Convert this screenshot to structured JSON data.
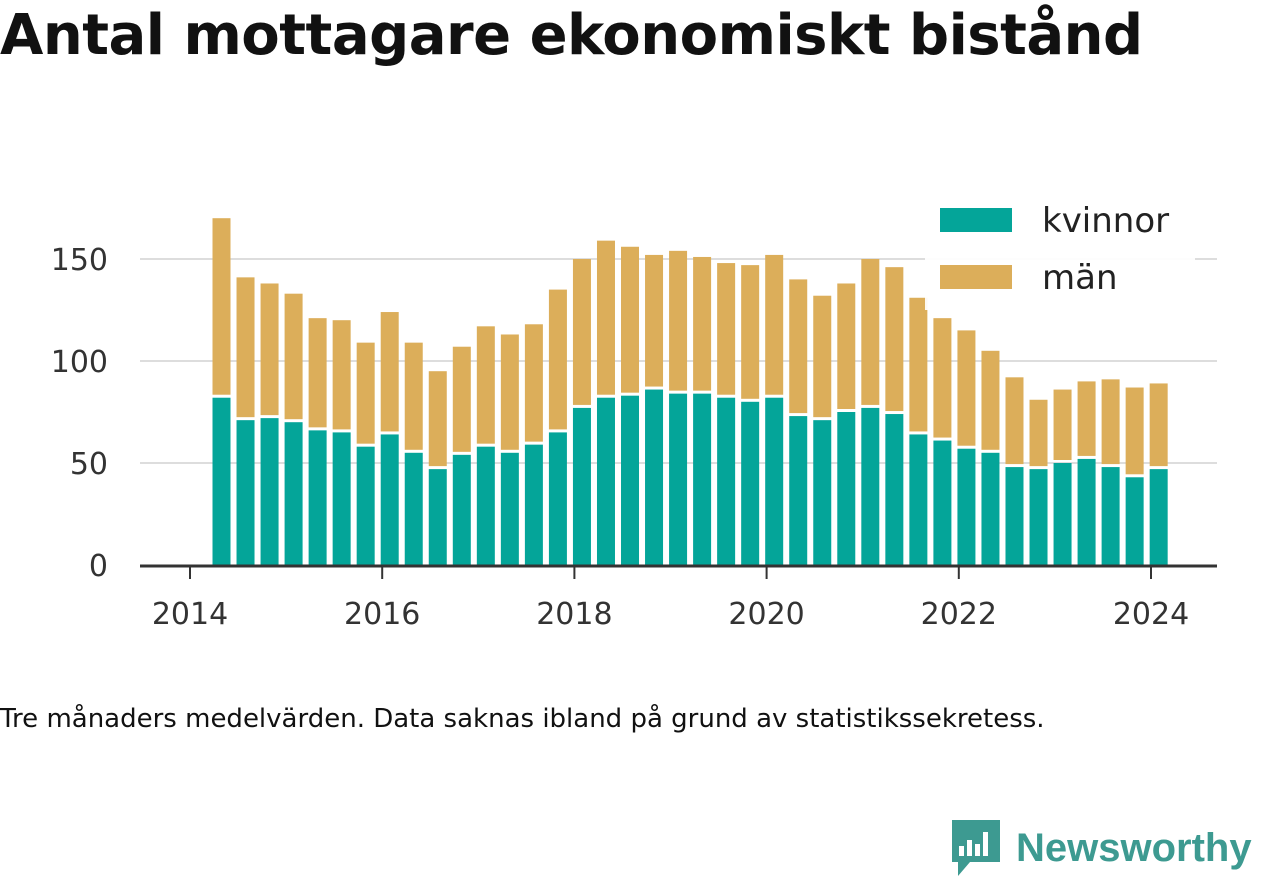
{
  "title": "Antal mottagare ekonomiskt bistånd",
  "caption": "Tre månaders medelvärden. Data saknas ibland på grund av statistikssekretess.",
  "brand": "Newsworthy",
  "colors": {
    "kvinnor": "#04a599",
    "man": "#dcae5a",
    "brand": "#3d9a91",
    "text": "#333333",
    "grid": "#dddddd"
  },
  "chart_data": {
    "type": "bar",
    "stacked": true,
    "ylim": [
      0,
      175
    ],
    "yticks": [
      0,
      50,
      100,
      150
    ],
    "xticks": [
      "2014",
      "2016",
      "2018",
      "2020",
      "2022",
      "2024"
    ],
    "legend_position": "top-right",
    "grid": true,
    "series": [
      {
        "name": "kvinnor",
        "values": [
          82,
          71,
          72,
          70,
          66,
          65,
          58,
          64,
          55,
          47,
          54,
          58,
          55,
          59,
          65,
          77,
          82,
          83,
          86,
          84,
          84,
          82,
          80,
          82,
          73,
          71,
          75,
          77,
          74,
          64,
          61,
          57,
          55,
          48,
          47,
          50,
          52,
          48,
          43,
          47
        ]
      },
      {
        "name": "män",
        "values": [
          88,
          70,
          66,
          63,
          55,
          55,
          51,
          60,
          54,
          48,
          53,
          59,
          58,
          59,
          70,
          73,
          77,
          73,
          66,
          70,
          67,
          66,
          67,
          70,
          67,
          61,
          63,
          73,
          72,
          67,
          60,
          58,
          50,
          44,
          34,
          36,
          38,
          43,
          44,
          42
        ]
      }
    ],
    "x": [
      "2014-05",
      "2014-08",
      "2014-11",
      "2015-02",
      "2015-05",
      "2015-08",
      "2015-11",
      "2016-02",
      "2016-05",
      "2016-08",
      "2016-11",
      "2017-02",
      "2017-05",
      "2017-08",
      "2017-11",
      "2018-02",
      "2018-05",
      "2018-08",
      "2018-11",
      "2019-02",
      "2019-05",
      "2019-08",
      "2019-11",
      "2020-02",
      "2020-05",
      "2020-08",
      "2020-11",
      "2021-02",
      "2021-05",
      "2021-08",
      "2021-11",
      "2022-02",
      "2022-05",
      "2022-08",
      "2022-11",
      "2023-02",
      "2023-05",
      "2023-08",
      "2023-11",
      "2024-02"
    ]
  }
}
